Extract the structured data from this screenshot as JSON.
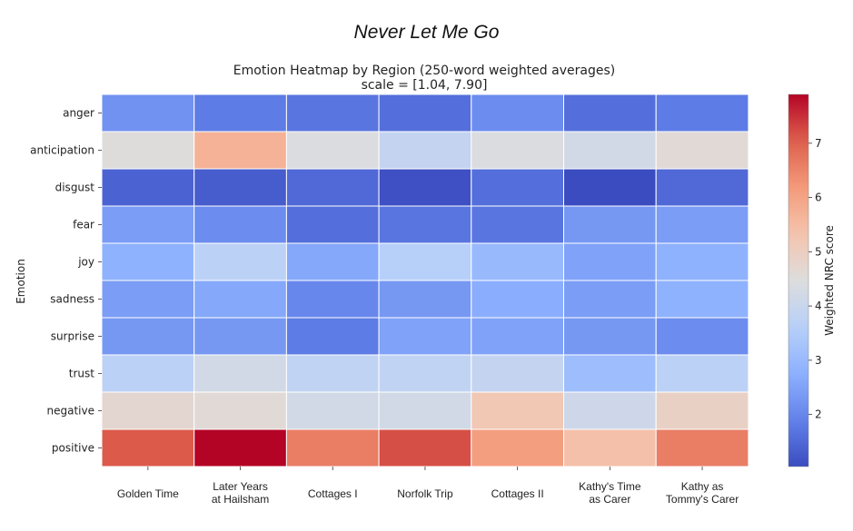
{
  "page_title": "Never Let Me Go",
  "chart_data": {
    "type": "heatmap",
    "title": "Emotion Heatmap by Region (250-word weighted averages)",
    "subtitle": "scale = [1.04, 7.90]",
    "ylabel": "Emotion",
    "xlabel": "",
    "rows": [
      "anger",
      "anticipation",
      "disgust",
      "fear",
      "joy",
      "sadness",
      "surprise",
      "trust",
      "negative",
      "positive"
    ],
    "columns": [
      [
        "Golden Time"
      ],
      [
        "Later Years",
        "at Hailsham"
      ],
      [
        "Cottages I"
      ],
      [
        "Norfolk Trip"
      ],
      [
        "Cottages II"
      ],
      [
        "Kathy's Time",
        "as Carer"
      ],
      [
        "Kathy as",
        "Tommy's Carer"
      ]
    ],
    "values": [
      [
        2.2,
        1.8,
        1.7,
        1.6,
        2.1,
        1.6,
        1.8
      ],
      [
        4.5,
        5.7,
        4.4,
        3.9,
        4.4,
        4.2,
        4.6
      ],
      [
        1.4,
        1.3,
        1.5,
        1.1,
        1.6,
        1.04,
        1.5
      ],
      [
        2.4,
        2.1,
        1.6,
        1.7,
        1.7,
        2.3,
        2.4
      ],
      [
        2.8,
        3.7,
        2.6,
        3.6,
        3.0,
        2.5,
        2.8
      ],
      [
        2.4,
        2.6,
        2.0,
        2.3,
        2.7,
        2.4,
        2.8
      ],
      [
        2.3,
        2.3,
        1.8,
        2.5,
        2.5,
        2.3,
        2.1
      ],
      [
        3.7,
        4.2,
        3.8,
        3.8,
        3.9,
        3.1,
        3.7
      ],
      [
        4.7,
        4.6,
        4.2,
        4.2,
        5.2,
        4.1,
        4.9
      ],
      [
        7.1,
        7.9,
        6.6,
        7.2,
        6.1,
        5.4,
        6.6
      ]
    ],
    "colorbar": {
      "label": "Weighted NRC score",
      "min": 1.04,
      "max": 7.9,
      "ticks": [
        2,
        3,
        4,
        5,
        6,
        7
      ],
      "colormap": "coolwarm"
    },
    "grid": false
  }
}
